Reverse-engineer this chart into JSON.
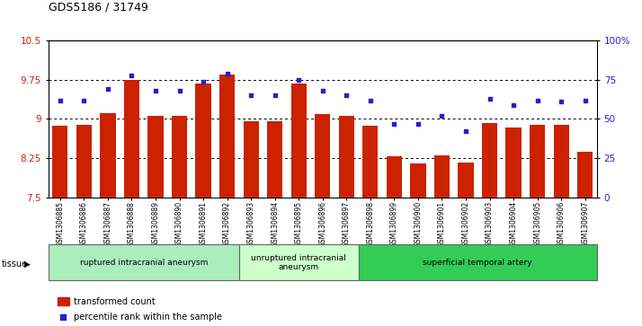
{
  "title": "GDS5186 / 31749",
  "samples": [
    "GSM1306885",
    "GSM1306886",
    "GSM1306887",
    "GSM1306888",
    "GSM1306889",
    "GSM1306890",
    "GSM1306891",
    "GSM1306892",
    "GSM1306893",
    "GSM1306894",
    "GSM1306895",
    "GSM1306896",
    "GSM1306897",
    "GSM1306898",
    "GSM1306899",
    "GSM1306900",
    "GSM1306901",
    "GSM1306902",
    "GSM1306903",
    "GSM1306904",
    "GSM1306905",
    "GSM1306906",
    "GSM1306907"
  ],
  "bar_values": [
    8.87,
    8.88,
    9.12,
    9.75,
    9.06,
    9.06,
    9.68,
    9.85,
    8.96,
    8.96,
    9.68,
    9.1,
    9.06,
    8.87,
    8.28,
    8.15,
    8.3,
    8.17,
    8.93,
    8.83,
    8.88,
    8.88,
    8.38
  ],
  "percentile_values": [
    62,
    62,
    69,
    78,
    68,
    68,
    74,
    79,
    65,
    65,
    75,
    68,
    65,
    62,
    47,
    47,
    52,
    42,
    63,
    59,
    62,
    61,
    62
  ],
  "bar_color": "#cc2200",
  "percentile_color": "#2222cc",
  "ylim_left": [
    7.5,
    10.5
  ],
  "ylim_right": [
    0,
    100
  ],
  "yticks_left": [
    7.5,
    8.25,
    9.0,
    9.75,
    10.5
  ],
  "ytick_labels_left": [
    "7.5",
    "8.25",
    "9",
    "9.75",
    "10.5"
  ],
  "yticks_right": [
    0,
    25,
    50,
    75,
    100
  ],
  "ytick_labels_right": [
    "0",
    "25",
    "50",
    "75",
    "100%"
  ],
  "grid_values": [
    8.25,
    9.0,
    9.75
  ],
  "groups": [
    {
      "label": "ruptured intracranial aneurysm",
      "start": 0,
      "end": 7
    },
    {
      "label": "unruptured intracranial\naneurysm",
      "start": 8,
      "end": 12
    },
    {
      "label": "superficial temporal artery",
      "start": 13,
      "end": 22
    }
  ],
  "group_colors": [
    "#aaeebb",
    "#ccffcc",
    "#33cc55"
  ],
  "tissue_label": "tissue",
  "arrow": "▶",
  "legend_bar_label": "transformed count",
  "legend_dot_label": "percentile rank within the sample",
  "bg_color": "#d8d8d8"
}
